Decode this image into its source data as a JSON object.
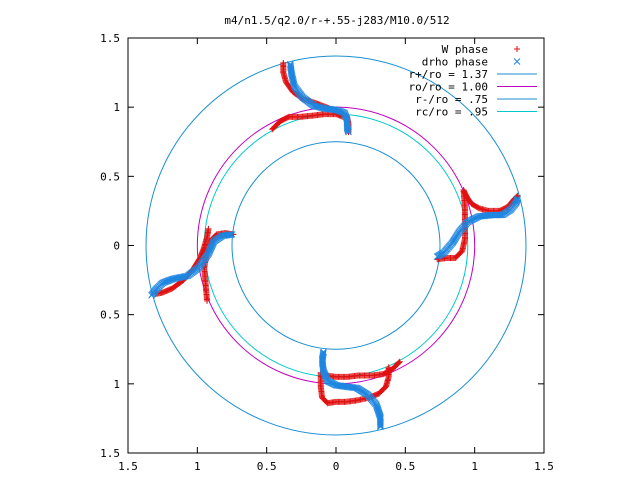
{
  "chart_data": {
    "type": "scatter",
    "title": "m4/n1.5/q2.0/r-+.55-j283/M10.0/512",
    "xlabel": "",
    "ylabel": "",
    "xlim": [
      -1.5,
      1.5
    ],
    "ylim": [
      -1.5,
      1.5
    ],
    "x_ticks": [
      {
        "v": -1.5,
        "label": "1.5"
      },
      {
        "v": -1,
        "label": "1"
      },
      {
        "v": -0.5,
        "label": "0.5"
      },
      {
        "v": 0,
        "label": "0"
      },
      {
        "v": 0.5,
        "label": "0.5"
      },
      {
        "v": 1,
        "label": "1"
      },
      {
        "v": 1.5,
        "label": "1.5"
      }
    ],
    "y_ticks": [
      {
        "v": 1.5,
        "label": "1.5"
      },
      {
        "v": 1,
        "label": "1"
      },
      {
        "v": 0.5,
        "label": "0.5"
      },
      {
        "v": 0,
        "label": "0"
      },
      {
        "v": -0.5,
        "label": "0.5"
      },
      {
        "v": -1,
        "label": "1"
      },
      {
        "v": -1.5,
        "label": "1.5"
      }
    ],
    "grid": false,
    "legend_position": "top-right",
    "circles": [
      {
        "name": "r+/ro = 1.37",
        "r": 1.37,
        "color": "#1a8fd0"
      },
      {
        "name": "ro/ro = 1.00",
        "r": 1.0,
        "color": "#c000c0"
      },
      {
        "name": "r-/ro = .75",
        "r": 0.75,
        "color": "#1a8fd0"
      },
      {
        "name": "rc/ro = .95",
        "r": 0.95,
        "color": "#00c8c8"
      }
    ],
    "series": [
      {
        "name": "W phase",
        "marker": "plus",
        "color": "#e01010",
        "arms": [
          [
            [
              0.92,
              0.4
            ],
            [
              0.95,
              0.34
            ],
            [
              0.98,
              0.3
            ],
            [
              1.03,
              0.27
            ],
            [
              1.1,
              0.25
            ],
            [
              1.18,
              0.25
            ],
            [
              1.24,
              0.28
            ],
            [
              1.28,
              0.33
            ],
            [
              1.31,
              0.36
            ]
          ],
          [
            [
              0.73,
              -0.1
            ],
            [
              0.8,
              -0.09
            ],
            [
              0.86,
              -0.09
            ],
            [
              0.91,
              -0.04
            ],
            [
              0.93,
              0.05
            ],
            [
              0.93,
              0.16
            ],
            [
              0.93,
              0.27
            ],
            [
              0.92,
              0.4
            ]
          ],
          [
            [
              -0.38,
              1.32
            ],
            [
              -0.38,
              1.25
            ],
            [
              -0.36,
              1.18
            ],
            [
              -0.31,
              1.11
            ],
            [
              -0.24,
              1.06
            ],
            [
              -0.15,
              1.03
            ],
            [
              -0.07,
              1.0
            ],
            [
              0.0,
              0.97
            ],
            [
              0.05,
              0.95
            ],
            [
              0.08,
              0.93
            ],
            [
              0.09,
              0.88
            ],
            [
              0.09,
              0.82
            ]
          ],
          [
            [
              -0.46,
              0.84
            ],
            [
              -0.4,
              0.9
            ],
            [
              -0.34,
              0.93
            ],
            [
              -0.26,
              0.93
            ],
            [
              -0.16,
              0.94
            ],
            [
              -0.08,
              0.95
            ],
            [
              0.0,
              0.95
            ],
            [
              0.05,
              0.93
            ]
          ],
          [
            [
              -0.92,
              0.12
            ],
            [
              -0.93,
              0.06
            ],
            [
              -0.95,
              -0.01
            ],
            [
              -0.98,
              -0.09
            ],
            [
              -1.03,
              -0.17
            ],
            [
              -1.1,
              -0.25
            ],
            [
              -1.18,
              -0.31
            ],
            [
              -1.25,
              -0.34
            ],
            [
              -1.3,
              -0.35
            ]
          ],
          [
            [
              -0.74,
              0.08
            ],
            [
              -0.8,
              0.09
            ],
            [
              -0.86,
              0.08
            ],
            [
              -0.9,
              0.04
            ],
            [
              -0.93,
              -0.05
            ],
            [
              -0.95,
              -0.16
            ],
            [
              -0.94,
              -0.28
            ],
            [
              -0.93,
              -0.4
            ]
          ],
          [
            [
              0.38,
              -0.88
            ],
            [
              0.38,
              -0.95
            ],
            [
              0.36,
              -1.02
            ],
            [
              0.31,
              -1.07
            ],
            [
              0.24,
              -1.1
            ],
            [
              0.15,
              -1.12
            ],
            [
              0.07,
              -1.13
            ],
            [
              0.0,
              -1.13
            ],
            [
              -0.06,
              -1.14
            ],
            [
              -0.1,
              -1.1
            ],
            [
              -0.11,
              -1.02
            ],
            [
              -0.11,
              -0.92
            ]
          ],
          [
            [
              0.46,
              -0.84
            ],
            [
              0.4,
              -0.9
            ],
            [
              0.34,
              -0.93
            ],
            [
              0.26,
              -0.94
            ],
            [
              0.16,
              -0.94
            ],
            [
              0.08,
              -0.95
            ],
            [
              0.0,
              -0.95
            ],
            [
              -0.07,
              -0.94
            ]
          ]
        ]
      },
      {
        "name": "drho phase",
        "marker": "cross",
        "color": "#1e86e0",
        "arms": [
          [
            [
              0.73,
              -0.08
            ],
            [
              0.78,
              -0.05
            ],
            [
              0.84,
              0.02
            ],
            [
              0.89,
              0.1
            ],
            [
              0.95,
              0.17
            ],
            [
              1.03,
              0.21
            ],
            [
              1.12,
              0.22
            ],
            [
              1.2,
              0.22
            ],
            [
              1.26,
              0.26
            ],
            [
              1.3,
              0.31
            ],
            [
              1.31,
              0.34
            ]
          ],
          [
            [
              -0.33,
              1.31
            ],
            [
              -0.32,
              1.24
            ],
            [
              -0.3,
              1.15
            ],
            [
              -0.24,
              1.07
            ],
            [
              -0.16,
              1.01
            ],
            [
              -0.08,
              0.99
            ],
            [
              0.0,
              0.98
            ],
            [
              0.06,
              0.96
            ],
            [
              0.08,
              0.91
            ],
            [
              0.08,
              0.85
            ],
            [
              0.09,
              0.82
            ]
          ],
          [
            [
              -0.75,
              0.08
            ],
            [
              -0.82,
              0.07
            ],
            [
              -0.88,
              0.03
            ],
            [
              -0.92,
              -0.06
            ],
            [
              -0.99,
              -0.16
            ],
            [
              -1.07,
              -0.22
            ],
            [
              -1.17,
              -0.24
            ],
            [
              -1.25,
              -0.27
            ],
            [
              -1.3,
              -0.32
            ],
            [
              -1.33,
              -0.36
            ]
          ],
          [
            [
              0.32,
              -1.31
            ],
            [
              0.32,
              -1.24
            ],
            [
              0.29,
              -1.15
            ],
            [
              0.23,
              -1.08
            ],
            [
              0.15,
              -1.03
            ],
            [
              0.07,
              -1.02
            ],
            [
              0.0,
              -1.01
            ],
            [
              -0.06,
              -0.98
            ],
            [
              -0.09,
              -0.91
            ],
            [
              -0.1,
              -0.83
            ],
            [
              -0.09,
              -0.77
            ]
          ]
        ]
      }
    ]
  }
}
